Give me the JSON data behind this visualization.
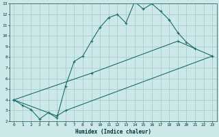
{
  "xlabel": "Humidex (Indice chaleur)",
  "ylabel": "",
  "bg_color": "#cde8e8",
  "grid_color": "#aacccc",
  "line_color": "#1a6b6b",
  "xlim": [
    -0.5,
    23.5
  ],
  "ylim": [
    2,
    13
  ],
  "xticks": [
    0,
    1,
    2,
    3,
    4,
    5,
    6,
    7,
    8,
    9,
    10,
    11,
    12,
    13,
    14,
    15,
    16,
    17,
    18,
    19,
    20,
    21,
    22,
    23
  ],
  "yticks": [
    2,
    3,
    4,
    5,
    6,
    7,
    8,
    9,
    10,
    11,
    12,
    13
  ],
  "line1_x": [
    0,
    1,
    2,
    3,
    4,
    5,
    6,
    7,
    8,
    9,
    10,
    11,
    12,
    13,
    14,
    15,
    16,
    17,
    18,
    19,
    20,
    21
  ],
  "line1_y": [
    4.0,
    3.5,
    3.1,
    2.2,
    2.8,
    2.3,
    5.3,
    7.6,
    8.1,
    9.5,
    10.8,
    11.7,
    12.0,
    11.2,
    13.2,
    12.5,
    13.0,
    12.3,
    11.5,
    10.3,
    9.4,
    8.8
  ],
  "line2_x": [
    0,
    9,
    19,
    23
  ],
  "line2_y": [
    4.0,
    6.5,
    9.5,
    8.1
  ],
  "line3_x": [
    0,
    5,
    6,
    23
  ],
  "line3_y": [
    4.0,
    2.5,
    3.0,
    8.1
  ]
}
